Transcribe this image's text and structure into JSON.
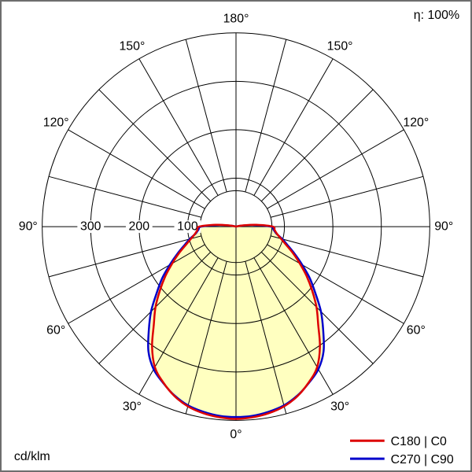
{
  "meta": {
    "efficiency_label": "η: 100%",
    "unit_label": "cd/klm"
  },
  "legend": {
    "items": [
      {
        "label": "C180 | C0",
        "color": "#dd0000"
      },
      {
        "label": "C270 | C90",
        "color": "#0000cc"
      }
    ]
  },
  "chart_data": {
    "type": "polar",
    "subtype": "photometric_intensity_distribution",
    "unit": "cd/klm",
    "efficiency": "100%",
    "angle_label_step_deg": 30,
    "angle_labels": [
      "0°",
      "30°",
      "60°",
      "90°",
      "120°",
      "150°",
      "180°"
    ],
    "grid_angle_step_deg": 15,
    "radial_ticks": [
      {
        "value": 100,
        "label": "100"
      },
      {
        "value": 200,
        "label": "200"
      },
      {
        "value": 300,
        "label": "300"
      }
    ],
    "radial_max": 400,
    "fill_color": "#ffffc0",
    "series": [
      {
        "name": "C180 | C0",
        "color": "#dd0000",
        "gamma_deg": [
          0,
          5,
          10,
          15,
          20,
          25,
          30,
          35,
          40,
          45,
          50,
          55,
          60,
          65,
          70,
          75,
          80,
          85,
          90,
          95,
          100,
          105,
          110,
          115,
          120,
          125,
          130,
          135,
          140,
          145,
          150,
          155,
          160,
          165,
          170,
          175,
          180
        ],
        "values": [
          397,
          395,
          391,
          384,
          372,
          355,
          335,
          302,
          264,
          235,
          205,
          178,
          152,
          130,
          110,
          96,
          86,
          80,
          76,
          42,
          15,
          4,
          0,
          0,
          0,
          0,
          0,
          0,
          0,
          0,
          0,
          0,
          0,
          0,
          0,
          0,
          0
        ]
      },
      {
        "name": "C270 | C90",
        "color": "#0000cc",
        "gamma_deg": [
          0,
          5,
          10,
          15,
          20,
          25,
          30,
          35,
          40,
          45,
          50,
          55,
          60,
          65,
          70,
          75,
          80,
          85,
          90,
          95,
          100,
          105,
          110,
          115,
          120,
          125,
          130,
          135,
          140,
          145,
          150,
          155,
          160,
          165,
          170,
          175,
          180
        ],
        "values": [
          393,
          392,
          388,
          382,
          371,
          356,
          340,
          315,
          280,
          248,
          214,
          186,
          158,
          134,
          114,
          99,
          85,
          78,
          72,
          37,
          11,
          2,
          0,
          0,
          0,
          0,
          0,
          0,
          0,
          0,
          0,
          0,
          0,
          0,
          0,
          0,
          0
        ]
      }
    ]
  }
}
